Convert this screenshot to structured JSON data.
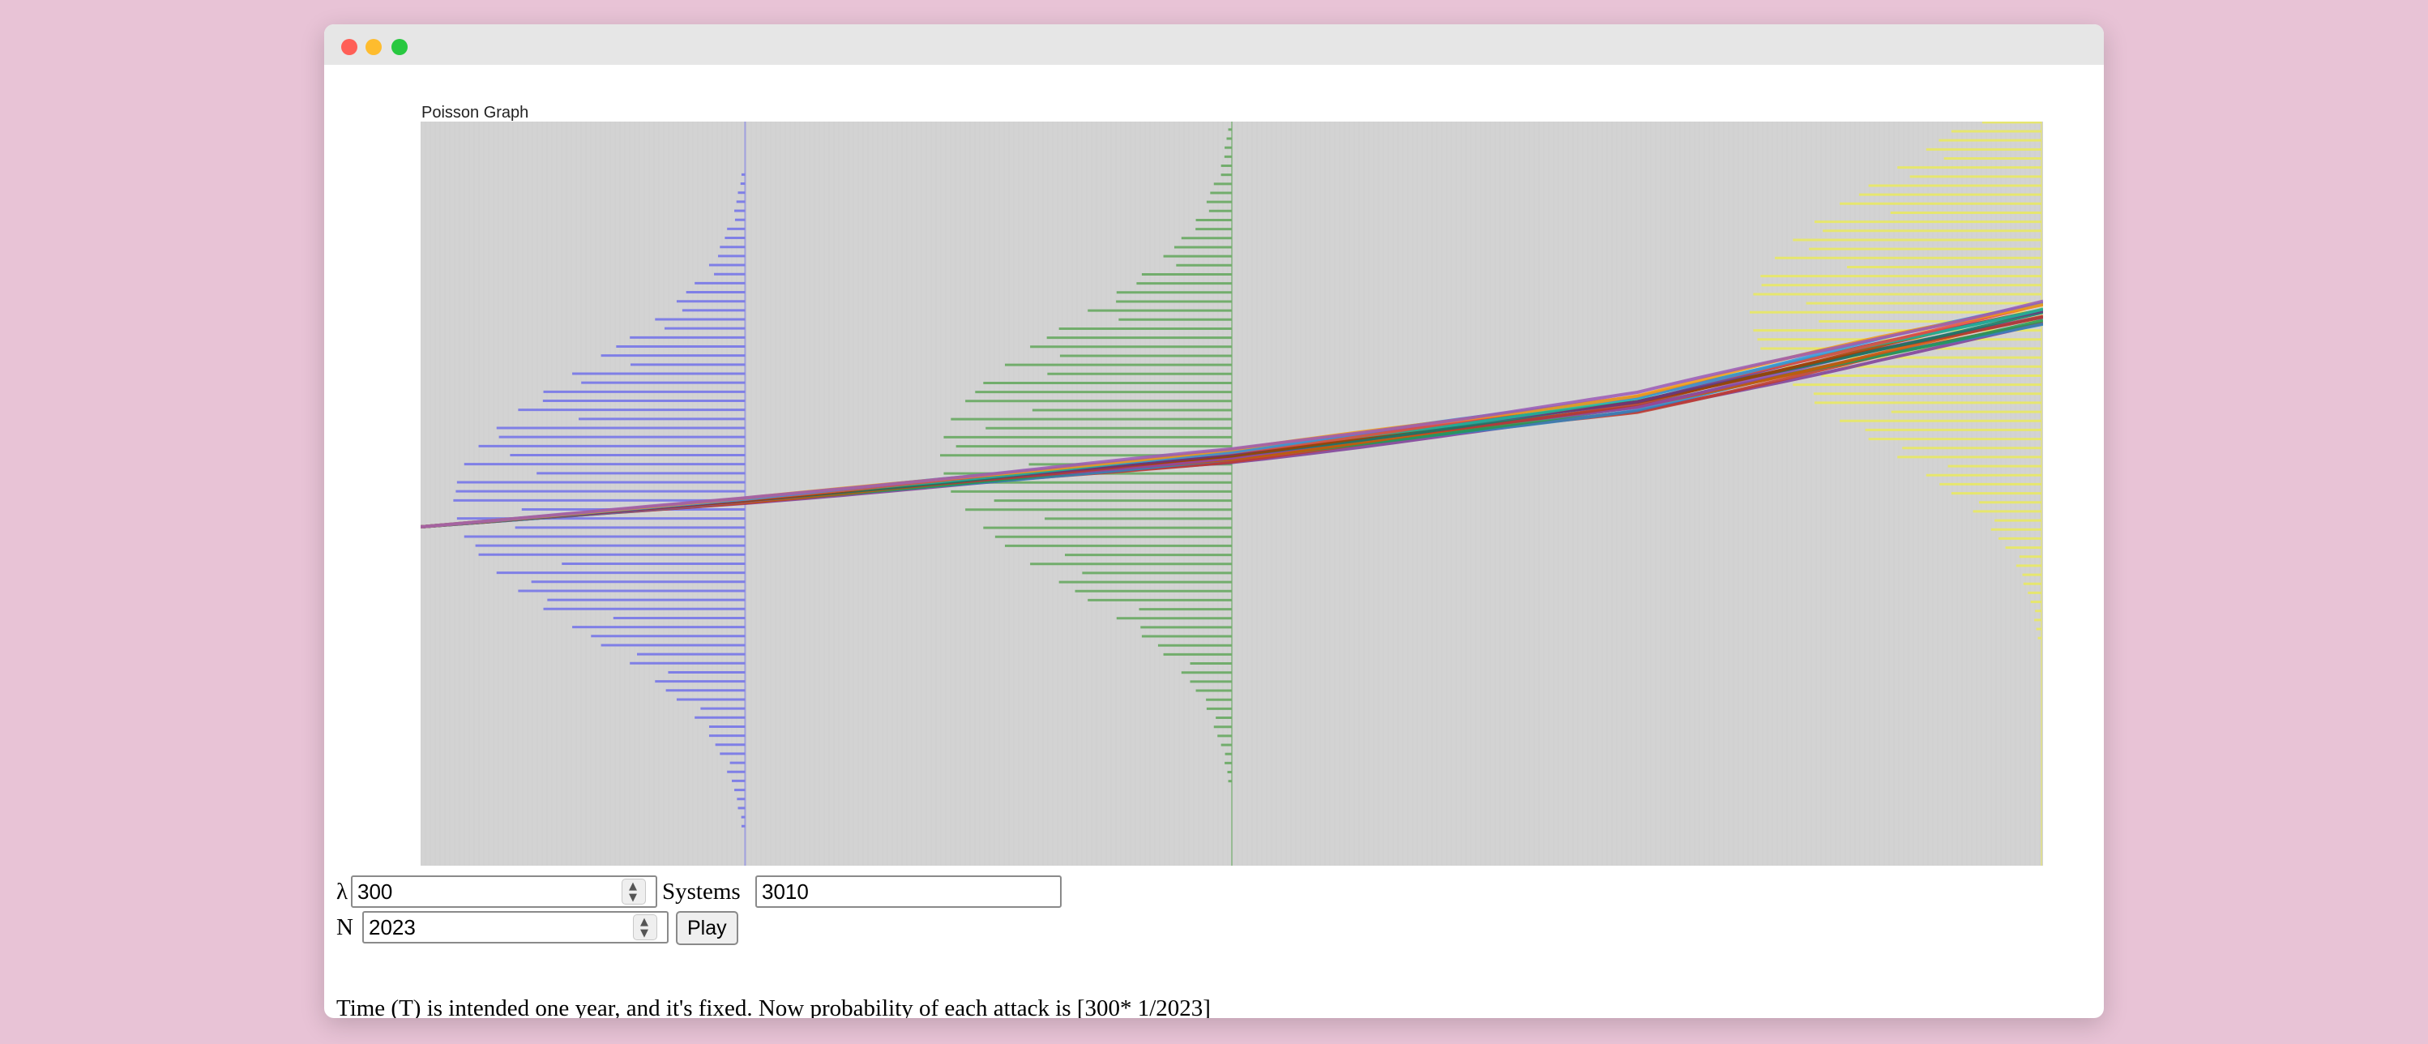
{
  "window": {
    "controls": [
      "close",
      "minimize",
      "maximize"
    ],
    "colors": {
      "close": "#ff5f57",
      "minimize": "#febc2e",
      "maximize": "#28c840"
    }
  },
  "chart_data": {
    "type": "line",
    "title": "Poisson Graph",
    "xlabel": "",
    "ylabel": "",
    "background": "#d3d3d3",
    "path_colors": [
      "#7d3c98",
      "#c0392b",
      "#2e86c1",
      "#229954",
      "#d35400",
      "#8e44ad",
      "#b03a2e",
      "#117a65",
      "#a04000",
      "#6c3483",
      "#1abc9c",
      "#e74c3c",
      "#3498db",
      "#f39c12",
      "#9b59b6"
    ],
    "mean_path": {
      "x": [
        0,
        0.2,
        0.5,
        0.75,
        0.9,
        1.0
      ],
      "y": [
        0,
        0.05,
        0.135,
        0.235,
        0.34,
        0.405
      ]
    },
    "histograms": [
      {
        "name": "",
        "color": "#7f7fe6",
        "x_position": 0.2,
        "center": 0.05,
        "values": [
          1,
          2,
          3,
          5,
          7,
          10,
          14,
          19,
          25,
          32,
          40,
          48,
          56,
          63,
          69,
          74,
          78,
          80,
          81,
          80,
          78,
          74,
          69,
          63,
          56,
          48,
          40,
          32,
          25,
          19,
          14,
          10,
          7,
          5,
          3,
          2,
          1
        ]
      },
      {
        "name": "",
        "color": "#72ad6c",
        "x_position": 0.5,
        "center": 0.135,
        "values": [
          1,
          2,
          3,
          5,
          7,
          10,
          14,
          19,
          25,
          32,
          40,
          48,
          56,
          63,
          69,
          74,
          78,
          80,
          81,
          80,
          78,
          74,
          69,
          63,
          56,
          48,
          40,
          32,
          25,
          19,
          14,
          10,
          7,
          5,
          3,
          2,
          1
        ]
      },
      {
        "name": "",
        "color": "#e6e66e",
        "x_position": 1.0,
        "center": 0.405,
        "values": [
          1,
          2,
          3,
          5,
          7,
          10,
          14,
          19,
          25,
          32,
          40,
          48,
          56,
          63,
          69,
          74,
          78,
          80,
          81,
          80,
          78,
          74,
          69,
          63,
          56,
          48,
          40,
          32,
          25,
          19,
          14,
          10,
          7,
          5,
          3,
          2,
          1
        ]
      }
    ]
  },
  "controls": {
    "lambda_label": "λ",
    "lambda_value": "300",
    "systems_label": "Systems",
    "systems_value": "3010",
    "n_label": "N",
    "n_value": "2023",
    "play_label": "Play"
  },
  "note": "Time (T) is intended one year, and it's fixed. Now probability of each attack is [300* 1/2023]"
}
